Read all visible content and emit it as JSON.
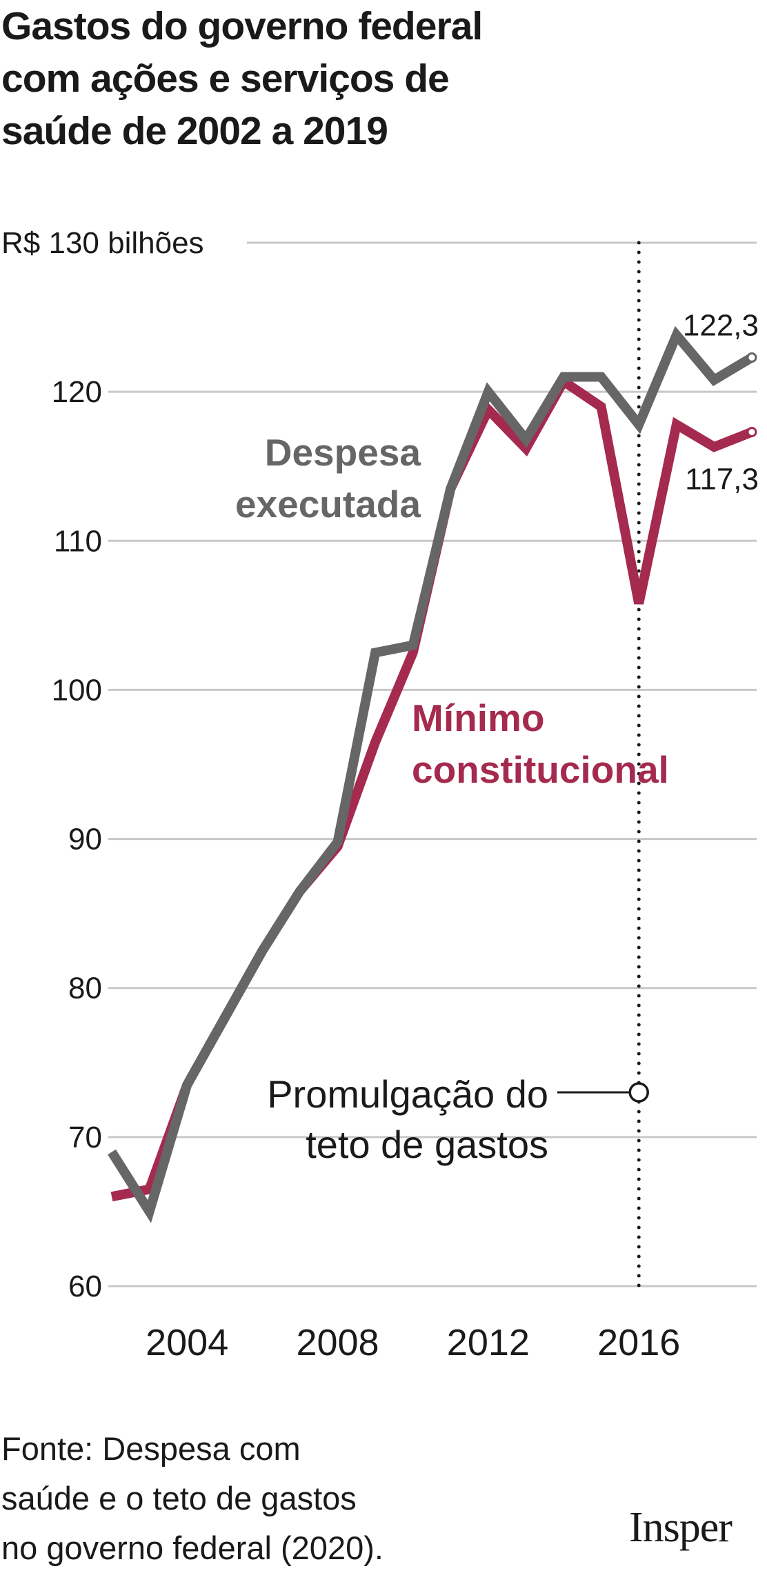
{
  "header": {
    "title_lines": [
      "Gastos do governo federal",
      "com ações e serviços de",
      "saúde de 2002 a 2019"
    ]
  },
  "chart_data": {
    "type": "line",
    "title": "Gastos do governo federal com ações e serviços de saúde de 2002 a 2019",
    "ylabel": "R$ 130 bilhões",
    "ylim": [
      60,
      130
    ],
    "yticks": [
      60,
      70,
      80,
      90,
      100,
      110,
      120,
      130
    ],
    "ytick_labels": [
      "60",
      "70",
      "80",
      "90",
      "100",
      "110",
      "120",
      "R$ 130 bilhões"
    ],
    "xlim": [
      2002,
      2019
    ],
    "xticks": [
      2004,
      2008,
      2012,
      2016
    ],
    "xtick_labels": [
      "2004",
      "2008",
      "2012",
      "2016"
    ],
    "grid": true,
    "colors": {
      "executada": "#666666",
      "minimo": "#a52a4f",
      "grid": "#c8c8c8",
      "text": "#1a1a1a"
    },
    "series": [
      {
        "name": "Despesa executada",
        "label_lines": [
          "Despesa",
          "executada"
        ],
        "x": [
          2002,
          2003,
          2004,
          2005,
          2006,
          2007,
          2008,
          2009,
          2010,
          2011,
          2012,
          2013,
          2014,
          2015,
          2016,
          2017,
          2018,
          2019
        ],
        "values": [
          69,
          65,
          73.5,
          78,
          82.5,
          86.5,
          89.8,
          102.5,
          103,
          113.5,
          120,
          116.8,
          121,
          121,
          117.8,
          123.8,
          120.8,
          122.3
        ],
        "end_label": "122,3"
      },
      {
        "name": "Mínimo constitucional",
        "label_lines": [
          "Mínimo",
          "constitucional"
        ],
        "x": [
          2002,
          2003,
          2004,
          2005,
          2006,
          2007,
          2008,
          2009,
          2010,
          2011,
          2012,
          2013,
          2014,
          2015,
          2016,
          2017,
          2018,
          2019
        ],
        "values": [
          66,
          66.5,
          73.5,
          78,
          82.5,
          86.5,
          89.5,
          96.5,
          102.5,
          113.5,
          118.8,
          116.2,
          120.7,
          119,
          105.8,
          117.8,
          116.3,
          117.3
        ],
        "end_label": "117,3"
      }
    ],
    "annotation": {
      "x": 2016,
      "y": 73,
      "text_lines": [
        "Promulgação do",
        "teto de gastos"
      ]
    }
  },
  "footer": {
    "source_lines": [
      "Fonte: Despesa com",
      "saúde e o teto de gastos",
      "no governo federal (2020)."
    ],
    "logo": "Insper"
  }
}
